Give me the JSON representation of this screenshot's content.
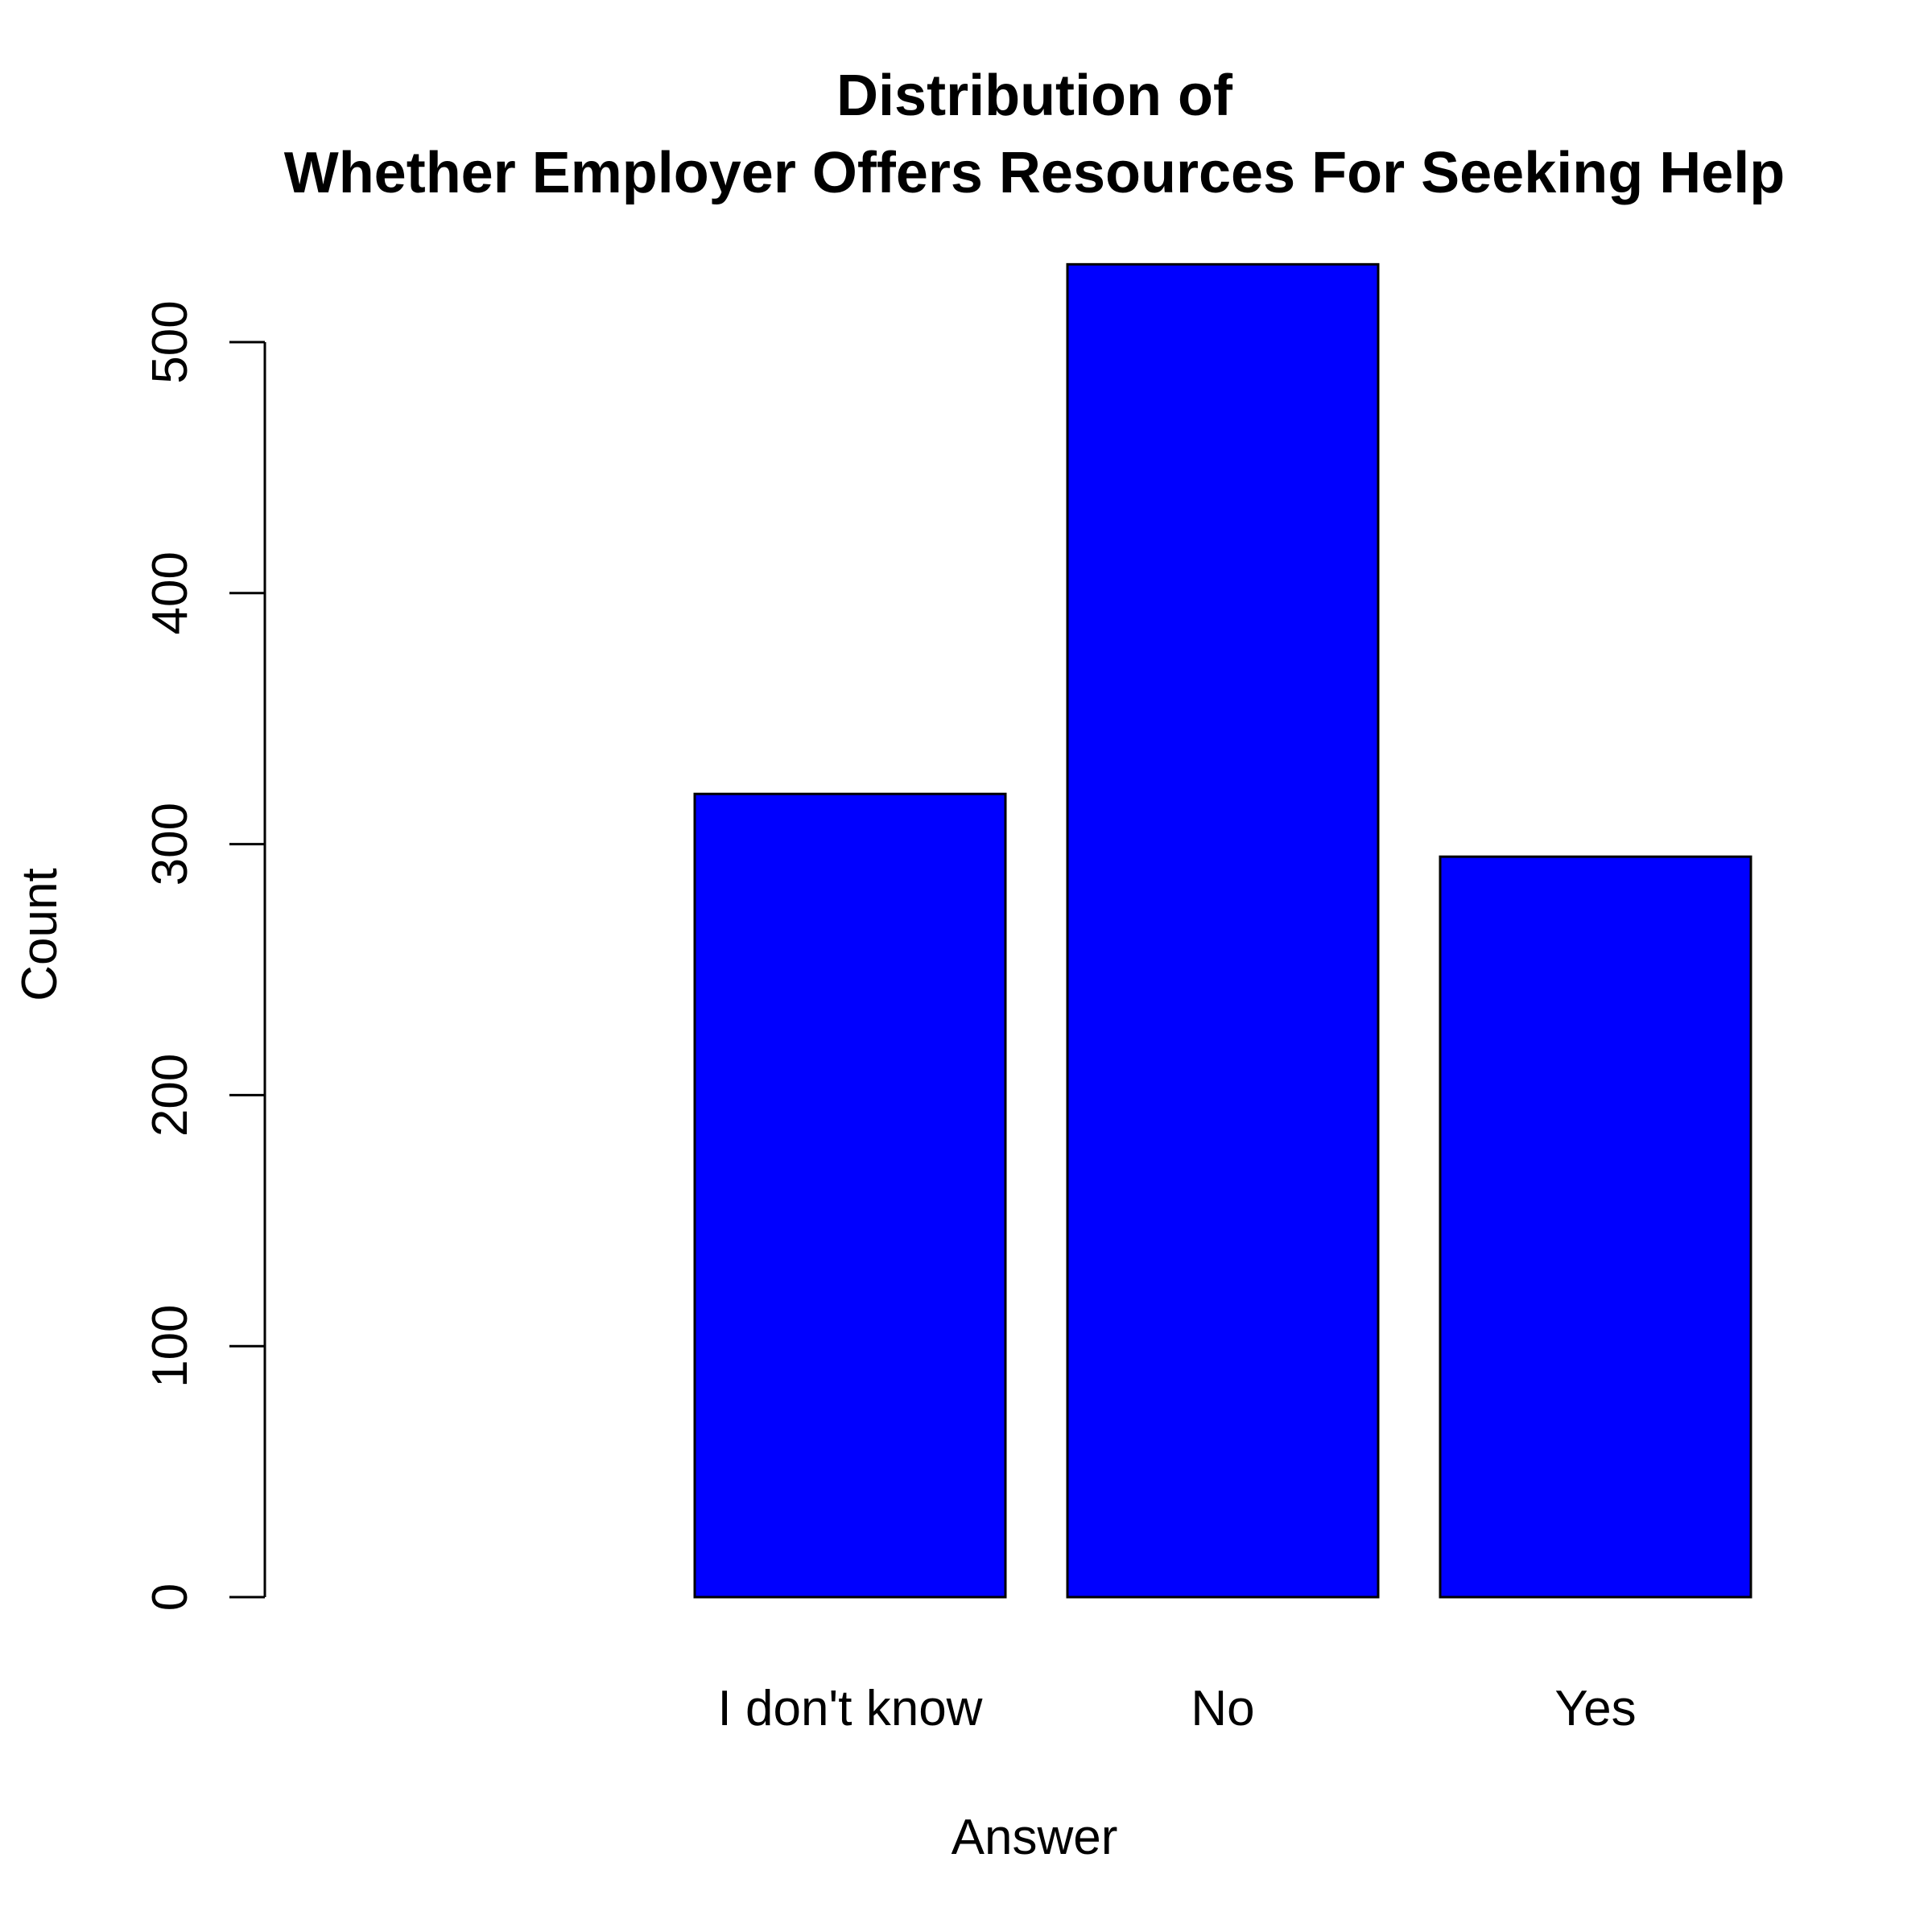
{
  "chart_data": {
    "type": "bar",
    "title": "Distribution of",
    "subtitle": "Whether Employer Offers Resources For Seeking Help",
    "xlabel": "Answer",
    "ylabel": "Count",
    "categories": [
      "",
      "I don't know",
      "No",
      "Yes"
    ],
    "values": [
      0,
      320,
      531,
      295
    ],
    "yticks": [
      0,
      100,
      200,
      300,
      400,
      500
    ],
    "ylim": [
      0,
      531
    ],
    "bar_color": "#0000ff",
    "grid": false
  }
}
